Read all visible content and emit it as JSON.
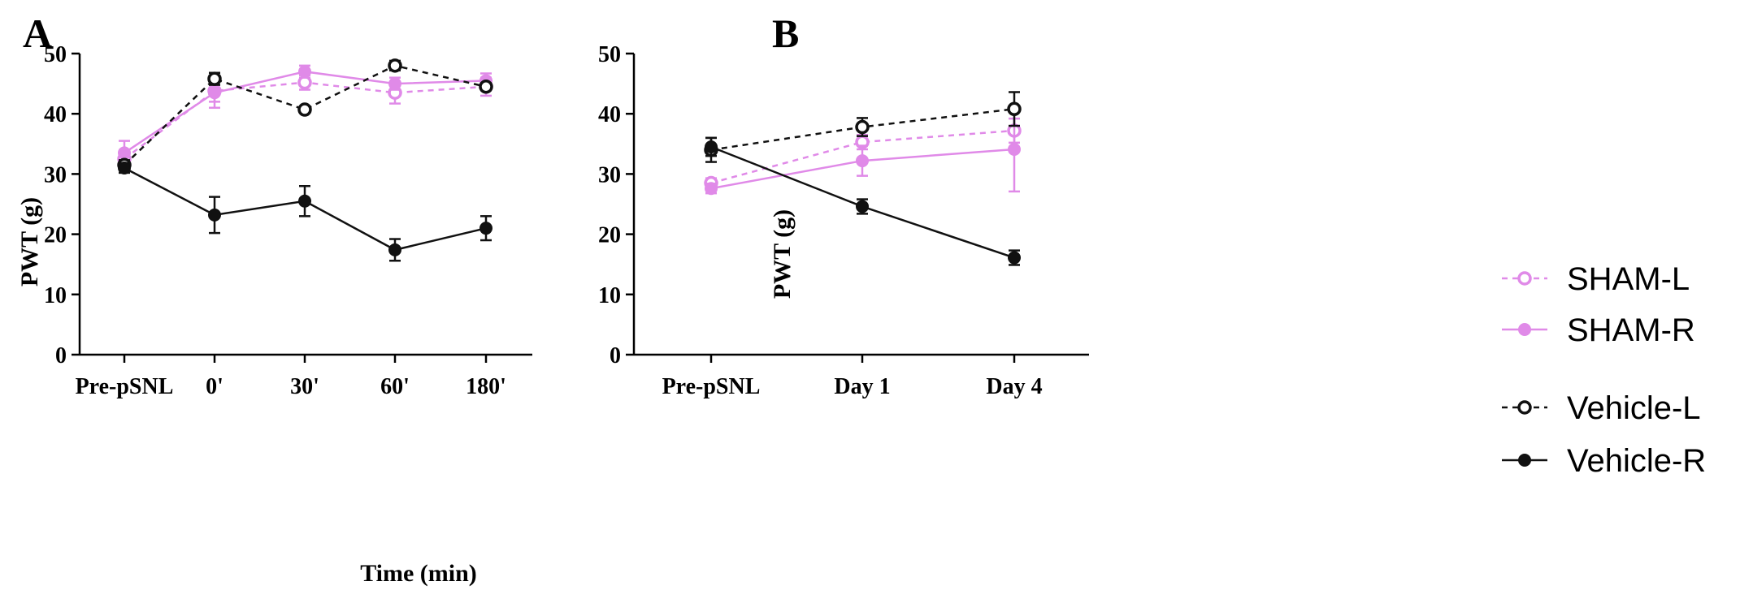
{
  "colors": {
    "sham": "#e08ae8",
    "vehicle": "#111111"
  },
  "legend": {
    "items": [
      {
        "label": "SHAM-L",
        "color": "#e08ae8",
        "dashed": true,
        "marker": "open"
      },
      {
        "label": "SHAM-R",
        "color": "#e08ae8",
        "dashed": false,
        "marker": "filled"
      },
      {
        "label": "Vehicle-L",
        "color": "#111111",
        "dashed": true,
        "marker": "open"
      },
      {
        "label": "Vehicle-R",
        "color": "#111111",
        "dashed": false,
        "marker": "filled"
      }
    ]
  },
  "chart_data": [
    {
      "panel": "A",
      "type": "line",
      "title": "",
      "xlabel": "Time (min)",
      "ylabel": "PWT (g)",
      "ylim": [
        0,
        50
      ],
      "yticks": [
        0,
        10,
        20,
        30,
        40,
        50
      ],
      "categories": [
        "Pre-pSNL",
        "0'",
        "30'",
        "60'",
        "180'"
      ],
      "series": [
        {
          "name": "SHAM-L",
          "color": "#e08ae8",
          "dashed": true,
          "marker": "open",
          "values": [
            32.5,
            43.8,
            45.2,
            43.5,
            44.5
          ],
          "errors": [
            1.5,
            1.8,
            1.2,
            1.8,
            1.5
          ]
        },
        {
          "name": "SHAM-R",
          "color": "#e08ae8",
          "dashed": false,
          "marker": "filled",
          "values": [
            33.5,
            43.5,
            47.0,
            45.0,
            45.5
          ],
          "errors": [
            2.0,
            2.5,
            1.0,
            1.0,
            1.2
          ]
        },
        {
          "name": "Vehicle-L",
          "color": "#111111",
          "dashed": true,
          "marker": "open",
          "values": [
            31.5,
            45.8,
            40.7,
            48.0,
            44.5
          ],
          "errors": [
            0.8,
            1.0,
            0.4,
            0.8,
            0.6
          ]
        },
        {
          "name": "Vehicle-R",
          "color": "#111111",
          "dashed": false,
          "marker": "filled",
          "values": [
            31.0,
            23.2,
            25.5,
            17.4,
            21.0
          ],
          "errors": [
            0.8,
            3.0,
            2.5,
            1.8,
            2.0
          ]
        }
      ]
    },
    {
      "panel": "B",
      "type": "line",
      "title": "",
      "xlabel": "",
      "ylabel": "PWT (g)",
      "ylim": [
        0,
        50
      ],
      "yticks": [
        0,
        10,
        20,
        30,
        40,
        50
      ],
      "categories": [
        "Pre-pSNL",
        "Day 1",
        "Day 4"
      ],
      "series": [
        {
          "name": "SHAM-L",
          "color": "#e08ae8",
          "dashed": true,
          "marker": "open",
          "values": [
            28.5,
            35.3,
            37.2
          ],
          "errors": [
            0.8,
            1.2,
            2.0
          ]
        },
        {
          "name": "SHAM-R",
          "color": "#e08ae8",
          "dashed": false,
          "marker": "filled",
          "values": [
            27.6,
            32.2,
            34.1
          ],
          "errors": [
            0.8,
            2.5,
            7.0
          ]
        },
        {
          "name": "Vehicle-L",
          "color": "#111111",
          "dashed": true,
          "marker": "open",
          "values": [
            34.0,
            37.8,
            40.8
          ],
          "errors": [
            2.0,
            1.5,
            2.8
          ]
        },
        {
          "name": "Vehicle-R",
          "color": "#111111",
          "dashed": false,
          "marker": "filled",
          "values": [
            34.5,
            24.6,
            16.1
          ],
          "errors": [
            1.5,
            1.2,
            1.2
          ]
        }
      ]
    }
  ]
}
